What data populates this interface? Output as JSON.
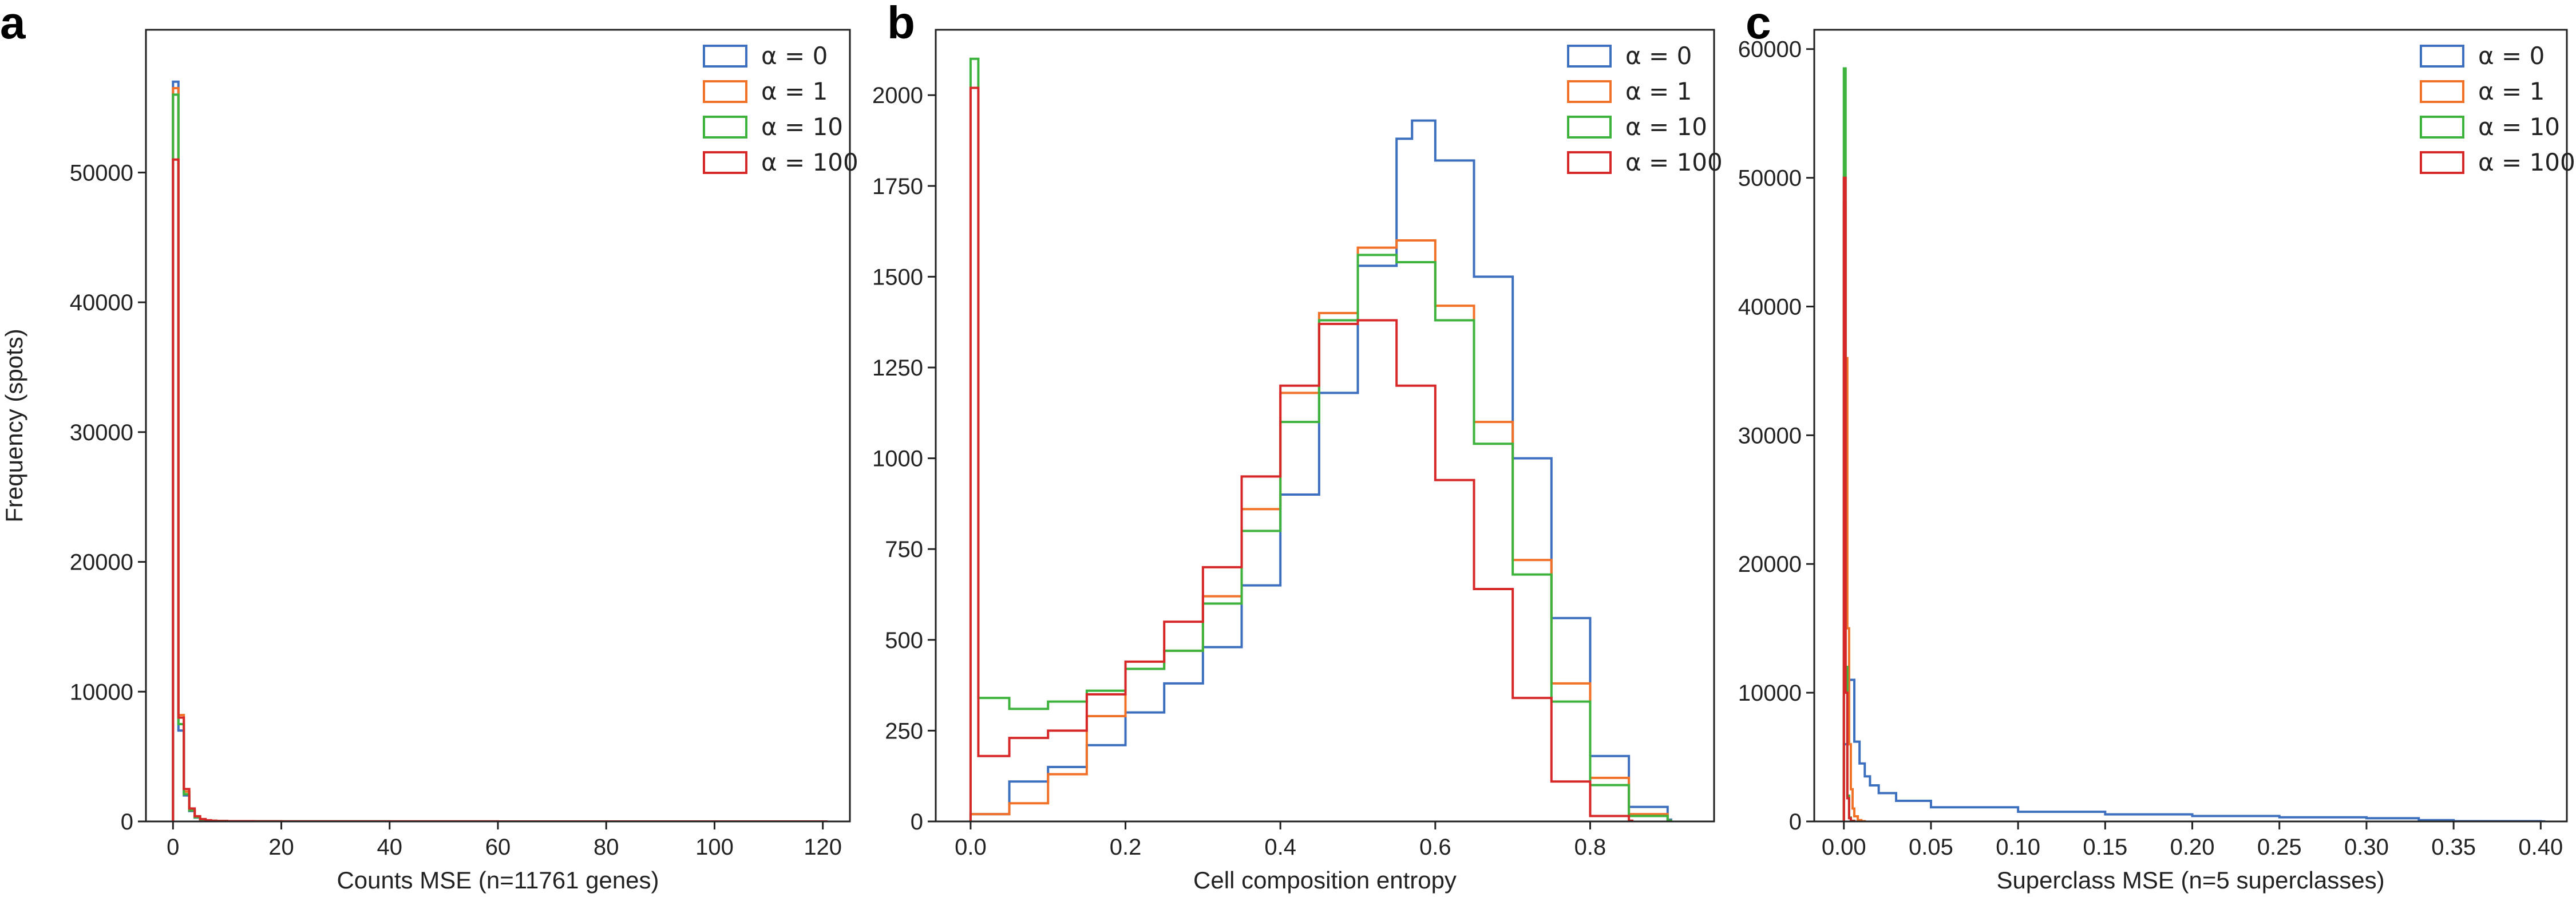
{
  "colors": {
    "alpha0": "#3d6fbf",
    "alpha1": "#f07127",
    "alpha10": "#3db23d",
    "alpha100": "#d62828"
  },
  "chart_data": [
    {
      "panel_label": "a",
      "type": "histogram",
      "title": "",
      "xlabel": "Counts MSE (n=11761 genes)",
      "ylabel": "Frequency (spots)",
      "xlim": [
        -5,
        125
      ],
      "ylim": [
        0,
        61000
      ],
      "xticks": [
        0,
        20,
        40,
        60,
        80,
        100,
        120
      ],
      "xtick_labels": [
        "0",
        "20",
        "40",
        "60",
        "80",
        "100",
        "120"
      ],
      "yticks": [
        0,
        10000,
        20000,
        30000,
        40000,
        50000
      ],
      "ytick_labels": [
        "0",
        "10000",
        "20000",
        "30000",
        "40000",
        "50000"
      ],
      "legend": [
        "α = 0",
        "α = 1",
        "α = 10",
        "α = 100"
      ],
      "legend_position": "top-right",
      "series": [
        {
          "name": "α = 0",
          "color": "#3d6fbf",
          "bin_width": 1,
          "x": [
            0,
            1,
            2,
            3,
            4,
            5,
            6,
            7,
            8,
            10,
            15,
            20,
            40,
            60,
            80,
            100,
            120
          ],
          "values": [
            57000,
            7000,
            2000,
            800,
            300,
            150,
            80,
            50,
            30,
            20,
            10,
            5,
            2,
            1,
            1,
            1,
            1
          ]
        },
        {
          "name": "α = 1",
          "color": "#f07127",
          "bin_width": 1,
          "x": [
            0,
            1,
            2,
            3,
            4,
            5,
            6,
            7,
            8,
            10,
            15,
            20,
            40,
            60,
            80,
            100,
            120
          ],
          "values": [
            56500,
            8200,
            2300,
            900,
            350,
            170,
            90,
            55,
            35,
            22,
            12,
            6,
            3,
            2,
            1,
            1,
            1
          ]
        },
        {
          "name": "α = 10",
          "color": "#3db23d",
          "bin_width": 1,
          "x": [
            0,
            1,
            2,
            3,
            4,
            5,
            6,
            7,
            8,
            10,
            15,
            20,
            40,
            60,
            80,
            100,
            120
          ],
          "values": [
            56000,
            7500,
            2100,
            850,
            320,
            160,
            85,
            50,
            32,
            20,
            11,
            5,
            2,
            1,
            1,
            1,
            1
          ]
        },
        {
          "name": "α = 100",
          "color": "#d62828",
          "bin_width": 1,
          "x": [
            0,
            1,
            2,
            3,
            4,
            5,
            6,
            7,
            8,
            10,
            15,
            20,
            40,
            60,
            80,
            100,
            120
          ],
          "values": [
            51000,
            8000,
            2500,
            1000,
            400,
            180,
            95,
            55,
            35,
            22,
            12,
            6,
            3,
            2,
            1,
            1,
            1
          ]
        }
      ]
    },
    {
      "panel_label": "b",
      "type": "histogram",
      "title": "",
      "xlabel": "Cell composition entropy",
      "ylabel": "",
      "xlim": [
        -0.045,
        0.96
      ],
      "ylim": [
        0,
        2180
      ],
      "xticks": [
        0.0,
        0.2,
        0.4,
        0.6,
        0.8
      ],
      "xtick_labels": [
        "0.0",
        "0.2",
        "0.4",
        "0.6",
        "0.8"
      ],
      "yticks": [
        0,
        250,
        500,
        750,
        1000,
        1250,
        1500,
        1750,
        2000
      ],
      "ytick_labels": [
        "0",
        "250",
        "500",
        "750",
        "1000",
        "1250",
        "1500",
        "1750",
        "2000"
      ],
      "legend": [
        "α = 0",
        "α = 1",
        "α = 10",
        "α = 100"
      ],
      "legend_position": "top-right",
      "series": [
        {
          "name": "α = 0",
          "color": "#3d6fbf",
          "x": [
            0.0,
            0.05,
            0.1,
            0.15,
            0.2,
            0.25,
            0.3,
            0.35,
            0.4,
            0.45,
            0.5,
            0.55,
            0.57,
            0.6,
            0.65,
            0.7,
            0.75,
            0.8,
            0.85,
            0.9
          ],
          "values": [
            20,
            110,
            150,
            210,
            300,
            380,
            480,
            650,
            900,
            1180,
            1530,
            1880,
            1930,
            1820,
            1500,
            1000,
            560,
            180,
            40,
            5
          ]
        },
        {
          "name": "α = 1",
          "color": "#f07127",
          "x": [
            0.0,
            0.05,
            0.1,
            0.15,
            0.2,
            0.25,
            0.3,
            0.35,
            0.4,
            0.45,
            0.5,
            0.55,
            0.6,
            0.65,
            0.7,
            0.75,
            0.8,
            0.85,
            0.9
          ],
          "values": [
            20,
            50,
            130,
            290,
            420,
            470,
            620,
            860,
            1180,
            1400,
            1580,
            1600,
            1420,
            1100,
            720,
            380,
            120,
            20,
            2
          ]
        },
        {
          "name": "α = 10",
          "color": "#3db23d",
          "x": [
            0.0,
            0.01,
            0.05,
            0.1,
            0.15,
            0.2,
            0.25,
            0.3,
            0.35,
            0.4,
            0.45,
            0.5,
            0.55,
            0.6,
            0.65,
            0.7,
            0.75,
            0.8,
            0.85,
            0.9
          ],
          "values": [
            2100,
            340,
            310,
            330,
            360,
            420,
            470,
            600,
            800,
            1100,
            1380,
            1560,
            1540,
            1380,
            1040,
            680,
            330,
            100,
            15,
            2
          ]
        },
        {
          "name": "α = 100",
          "color": "#d62828",
          "x": [
            0.0,
            0.01,
            0.05,
            0.1,
            0.15,
            0.2,
            0.25,
            0.3,
            0.35,
            0.4,
            0.45,
            0.5,
            0.55,
            0.6,
            0.65,
            0.7,
            0.75,
            0.8,
            0.85
          ],
          "values": [
            2020,
            180,
            230,
            250,
            350,
            440,
            550,
            700,
            950,
            1200,
            1370,
            1380,
            1200,
            940,
            640,
            340,
            110,
            15,
            2
          ]
        }
      ]
    },
    {
      "panel_label": "c",
      "type": "histogram",
      "title": "",
      "xlabel": "Superclass MSE (n=5 superclasses)",
      "ylabel": "",
      "xlim": [
        -0.017,
        0.415
      ],
      "ylim": [
        0,
        61500
      ],
      "xticks": [
        0.0,
        0.05,
        0.1,
        0.15,
        0.2,
        0.25,
        0.3,
        0.35,
        0.4
      ],
      "xtick_labels": [
        "0.00",
        "0.05",
        "0.10",
        "0.15",
        "0.20",
        "0.25",
        "0.30",
        "0.35",
        "0.40"
      ],
      "yticks": [
        0,
        10000,
        20000,
        30000,
        40000,
        50000,
        60000
      ],
      "ytick_labels": [
        "0",
        "10000",
        "20000",
        "30000",
        "40000",
        "50000",
        "60000"
      ],
      "legend": [
        "α = 0",
        "α = 1",
        "α = 10",
        "α = 100"
      ],
      "legend_position": "top-right",
      "series": [
        {
          "name": "α = 0",
          "color": "#3d6fbf",
          "x": [
            0.0,
            0.003,
            0.006,
            0.009,
            0.012,
            0.015,
            0.02,
            0.03,
            0.05,
            0.1,
            0.15,
            0.2,
            0.25,
            0.3,
            0.33,
            0.35,
            0.4
          ],
          "values": [
            6000,
            11000,
            6200,
            4500,
            3500,
            2800,
            2200,
            1600,
            1100,
            750,
            550,
            420,
            320,
            250,
            100,
            20,
            5
          ]
        },
        {
          "name": "α = 1",
          "color": "#f07127",
          "x": [
            0.0,
            0.001,
            0.002,
            0.003,
            0.004,
            0.005,
            0.006,
            0.008,
            0.01
          ],
          "values": [
            48000,
            36000,
            15000,
            6000,
            2500,
            1000,
            400,
            100,
            20
          ]
        },
        {
          "name": "α = 10",
          "color": "#3db23d",
          "x": [
            0.0,
            0.001,
            0.002,
            0.003,
            0.004
          ],
          "values": [
            58500,
            12000,
            2000,
            300,
            50
          ]
        },
        {
          "name": "α = 100",
          "color": "#d62828",
          "x": [
            0.0,
            0.001,
            0.002,
            0.003,
            0.004
          ],
          "values": [
            50000,
            10000,
            1800,
            250,
            40
          ]
        }
      ]
    }
  ]
}
